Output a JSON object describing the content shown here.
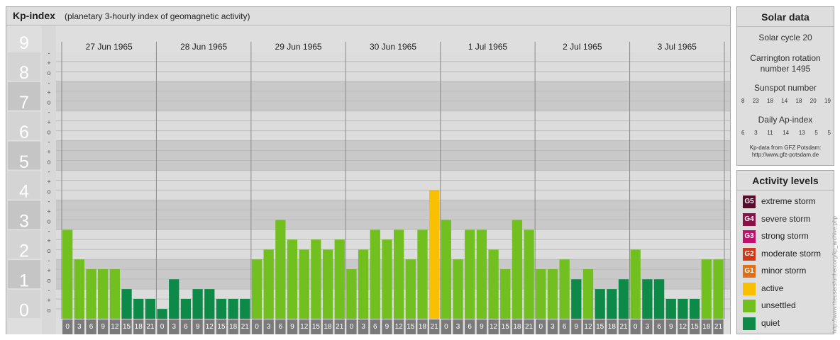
{
  "title": "Kp-index",
  "subtitle": "(planetary 3-hourly index of geomagnetic activity)",
  "solar": {
    "title": "Solar data",
    "cycle": "Solar cycle 20",
    "carrington_line1": "Carrington rotation",
    "carrington_line2": "number 1495",
    "sunspot_label": "Sunspot number",
    "sunspot_values": [
      "8",
      "23",
      "18",
      "14",
      "18",
      "20",
      "19"
    ],
    "ap_label": "Daily Ap-index",
    "ap_values": [
      "6",
      "3",
      "11",
      "14",
      "13",
      "5",
      "5"
    ],
    "credit_line1": "Kp-data from GFZ Potsdam:",
    "credit_line2": "http://www.gfz-potsdam.de"
  },
  "legend": {
    "title": "Activity levels",
    "items": [
      {
        "badge": "G5",
        "label": "extreme storm",
        "color": "#5a0a2a"
      },
      {
        "badge": "G4",
        "label": "severe storm",
        "color": "#8a1048"
      },
      {
        "badge": "G3",
        "label": "strong storm",
        "color": "#c0106e"
      },
      {
        "badge": "G2",
        "label": "moderate storm",
        "color": "#d03818"
      },
      {
        "badge": "G1",
        "label": "minor storm",
        "color": "#e07018"
      },
      {
        "badge": "",
        "label": "active",
        "color": "#f8c000"
      },
      {
        "badge": "",
        "label": "unsettled",
        "color": "#72c020"
      },
      {
        "badge": "",
        "label": "quiet",
        "color": "#0e8a48"
      }
    ]
  },
  "watermark": "http://www.theusersfurthercorg/kp_archive.php",
  "chart_data": {
    "type": "bar",
    "ylim": [
      0,
      9
    ],
    "y_tick_labels": [
      "0",
      "1",
      "2",
      "3",
      "4",
      "5",
      "6",
      "7",
      "8",
      "9"
    ],
    "sub_tick_labels": [
      "o",
      "+",
      "-"
    ],
    "days": [
      "27 Jun 1965",
      "28 Jun 1965",
      "29 Jun 1965",
      "30 Jun 1965",
      "1 Jul 1965",
      "2 Jul 1965",
      "3 Jul 1965"
    ],
    "interval_start": [
      "0",
      "3",
      "6",
      "9",
      "12",
      "15",
      "18",
      "21"
    ],
    "interval_end": [
      "3",
      "6",
      "9",
      "12",
      "15",
      "18",
      "21",
      "24"
    ],
    "values": [
      [
        3,
        2,
        1.67,
        1.67,
        1.67,
        1,
        0.67,
        0.67
      ],
      [
        0.33,
        1.33,
        0.67,
        1,
        1,
        0.67,
        0.67,
        0.67
      ],
      [
        2,
        2.33,
        3.33,
        2.67,
        2.33,
        2.67,
        2.33,
        2.67
      ],
      [
        1.67,
        2.33,
        3,
        2.67,
        3,
        2,
        3,
        4.33
      ],
      [
        3.33,
        2,
        3,
        3,
        2.33,
        1.67,
        3.33,
        3
      ],
      [
        1.67,
        1.67,
        2,
        1.33,
        1.67,
        1,
        1,
        1.33
      ],
      [
        2.33,
        1.33,
        1.33,
        0.67,
        0.67,
        0.67,
        2,
        2
      ]
    ],
    "colors": {
      "quiet": "#0e8a48",
      "unsettled": "#72c020",
      "active": "#f8c000"
    }
  }
}
